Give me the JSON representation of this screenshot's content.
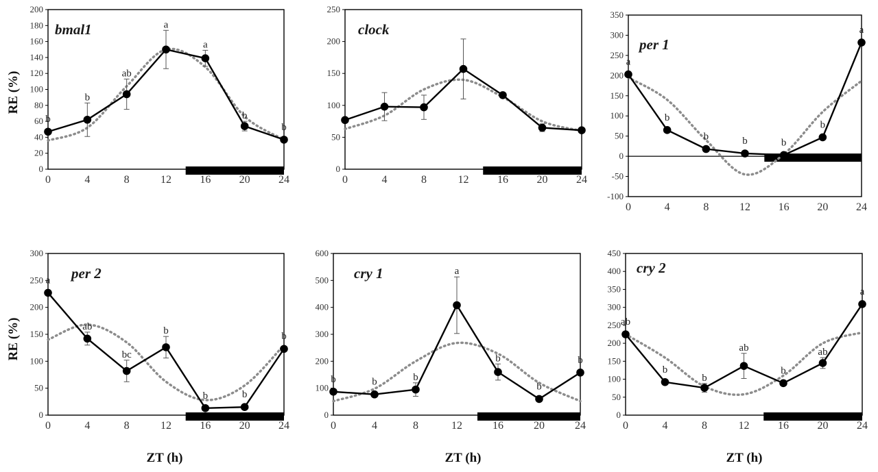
{
  "figure": {
    "ylabel": "RE (%)",
    "xlabel": "ZT (h)",
    "colors": {
      "measured": "#000000",
      "fit": "#8c8c8c",
      "dark_bar": "#000000"
    },
    "dark_phase": [
      14,
      24
    ]
  },
  "chart_data": [
    {
      "type": "line",
      "title": "bmal1",
      "title_color": "#111111",
      "x": [
        0,
        4,
        8,
        12,
        16,
        20,
        24
      ],
      "xlim": [
        0,
        24
      ],
      "ylim": [
        0,
        200
      ],
      "yticks": [
        0,
        20,
        40,
        60,
        80,
        100,
        120,
        140,
        160,
        180,
        200
      ],
      "series": [
        {
          "values": [
            47,
            62,
            94,
            150,
            139,
            54,
            37
          ],
          "errors": [
            0,
            21,
            19,
            24,
            10,
            6,
            0
          ]
        },
        {
          "fitted": true,
          "values": [
            36,
            52,
            104,
            150,
            128,
            66,
            37
          ]
        }
      ],
      "annotations": [
        "b",
        "b",
        "ab",
        "a",
        "a",
        "b",
        "b"
      ]
    },
    {
      "type": "line",
      "title": "clock",
      "title_color": "#555555",
      "x": [
        0,
        4,
        8,
        12,
        16,
        20,
        24
      ],
      "xlim": [
        0,
        24
      ],
      "ylim": [
        0,
        250
      ],
      "yticks": [
        0,
        50,
        100,
        150,
        200,
        250
      ],
      "series": [
        {
          "values": [
            77,
            98,
            97,
            157,
            116,
            65,
            61
          ],
          "errors": [
            0,
            22,
            19,
            47,
            0,
            6,
            0
          ]
        },
        {
          "fitted": true,
          "values": [
            63,
            84,
            125,
            140,
            113,
            75,
            60
          ]
        }
      ],
      "annotations": []
    },
    {
      "type": "line",
      "title": "per 1",
      "title_color": "#111111",
      "x": [
        0,
        4,
        8,
        12,
        16,
        20,
        24
      ],
      "xlim": [
        0,
        24
      ],
      "ylim": [
        -100,
        350
      ],
      "yticks": [
        -100,
        -50,
        0,
        50,
        100,
        150,
        200,
        250,
        300,
        350
      ],
      "series": [
        {
          "values": [
            203,
            65,
            18,
            7,
            3,
            47,
            282
          ],
          "errors": [
            0,
            0,
            0,
            0,
            0,
            0,
            0
          ]
        },
        {
          "fitted": true,
          "values": [
            195,
            140,
            40,
            -45,
            5,
            110,
            187
          ]
        }
      ],
      "annotations": [
        "a",
        "b",
        "b",
        "b",
        "b",
        "b",
        "a"
      ]
    },
    {
      "type": "line",
      "title": "per 2",
      "title_color": "#555555",
      "x": [
        0,
        4,
        8,
        12,
        16,
        20,
        24
      ],
      "xlim": [
        0,
        24
      ],
      "ylim": [
        0,
        300
      ],
      "yticks": [
        0,
        50,
        100,
        150,
        200,
        250,
        300
      ],
      "series": [
        {
          "values": [
            227,
            142,
            82,
            126,
            13,
            15,
            123
          ],
          "errors": [
            0,
            12,
            20,
            20,
            0,
            0,
            0
          ]
        },
        {
          "fitted": true,
          "values": [
            140,
            168,
            135,
            62,
            28,
            55,
            130
          ]
        }
      ],
      "annotations": [
        "a",
        "ab",
        "bc",
        "b",
        "b",
        "b",
        "b"
      ]
    },
    {
      "type": "line",
      "title": "cry 1",
      "title_color": "#555555",
      "x": [
        0,
        4,
        8,
        12,
        16,
        20,
        24
      ],
      "xlim": [
        0,
        24
      ],
      "ylim": [
        0,
        600
      ],
      "yticks": [
        0,
        100,
        200,
        300,
        400,
        500,
        600
      ],
      "series": [
        {
          "values": [
            87,
            77,
            95,
            408,
            160,
            60,
            158
          ],
          "errors": [
            0,
            0,
            25,
            105,
            30,
            0,
            0
          ]
        },
        {
          "fitted": true,
          "values": [
            52,
            98,
            200,
            268,
            228,
            120,
            52
          ]
        }
      ],
      "annotations": [
        "b",
        "b",
        "b",
        "a",
        "b",
        "b",
        "b"
      ]
    },
    {
      "type": "line",
      "title": "cry 2",
      "title_color": "#555555",
      "x": [
        0,
        4,
        8,
        12,
        16,
        20,
        24
      ],
      "xlim": [
        0,
        24
      ],
      "ylim": [
        0,
        450
      ],
      "yticks": [
        0,
        50,
        100,
        150,
        200,
        250,
        300,
        350,
        400,
        450
      ],
      "series": [
        {
          "values": [
            225,
            92,
            76,
            137,
            89,
            145,
            309
          ],
          "errors": [
            0,
            0,
            12,
            35,
            0,
            15,
            0
          ]
        },
        {
          "fitted": true,
          "values": [
            225,
            160,
            80,
            58,
            110,
            200,
            230
          ]
        }
      ],
      "annotations": [
        "ab",
        "b",
        "b",
        "ab",
        "b",
        "ab",
        "a"
      ]
    }
  ]
}
